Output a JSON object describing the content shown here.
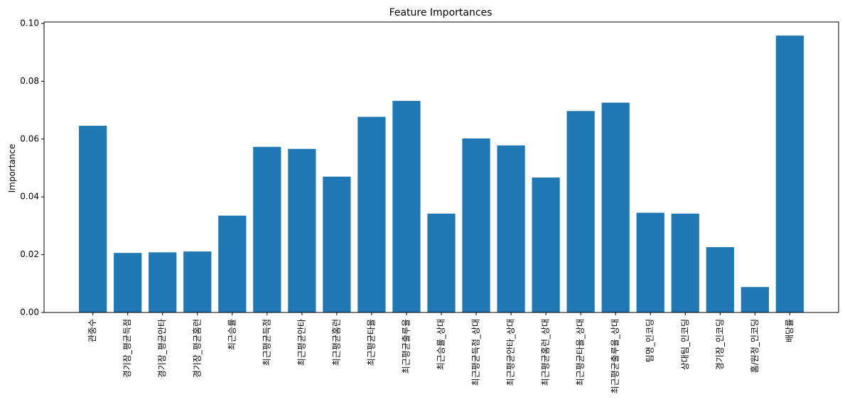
{
  "chart_data": {
    "type": "bar",
    "title": "Feature Importances",
    "xlabel": "",
    "ylabel": "Importance",
    "ylim": [
      0,
      0.1005
    ],
    "yticks": [
      "0.00",
      "0.02",
      "0.04",
      "0.06",
      "0.08",
      "0.10"
    ],
    "categories": [
      "관중수",
      "경기장_평균득점",
      "경기장_평균안타",
      "경기장_평균홈런",
      "최근승률",
      "최근평균득점",
      "최근평균안타",
      "최근평균홈런",
      "최근평균타율",
      "최근평균출루율",
      "최근승률_상대",
      "최근평균득점_상대",
      "최근평균안타_상대",
      "최근평균홈런_상대",
      "최근평균타율_상대",
      "최근평균출루율_상대",
      "팀명_인코딩",
      "상대팀_인코딩",
      "경기장_인코딩",
      "홈/원정_인코딩",
      "배당률"
    ],
    "values": [
      0.0646,
      0.0206,
      0.0208,
      0.0211,
      0.0335,
      0.0573,
      0.0566,
      0.047,
      0.0677,
      0.0732,
      0.0342,
      0.0602,
      0.0578,
      0.0467,
      0.0697,
      0.0726,
      0.0345,
      0.0342,
      0.0226,
      0.0088,
      0.0958
    ],
    "bar_color": "#1f77b4",
    "grid": false,
    "legend": "none"
  }
}
